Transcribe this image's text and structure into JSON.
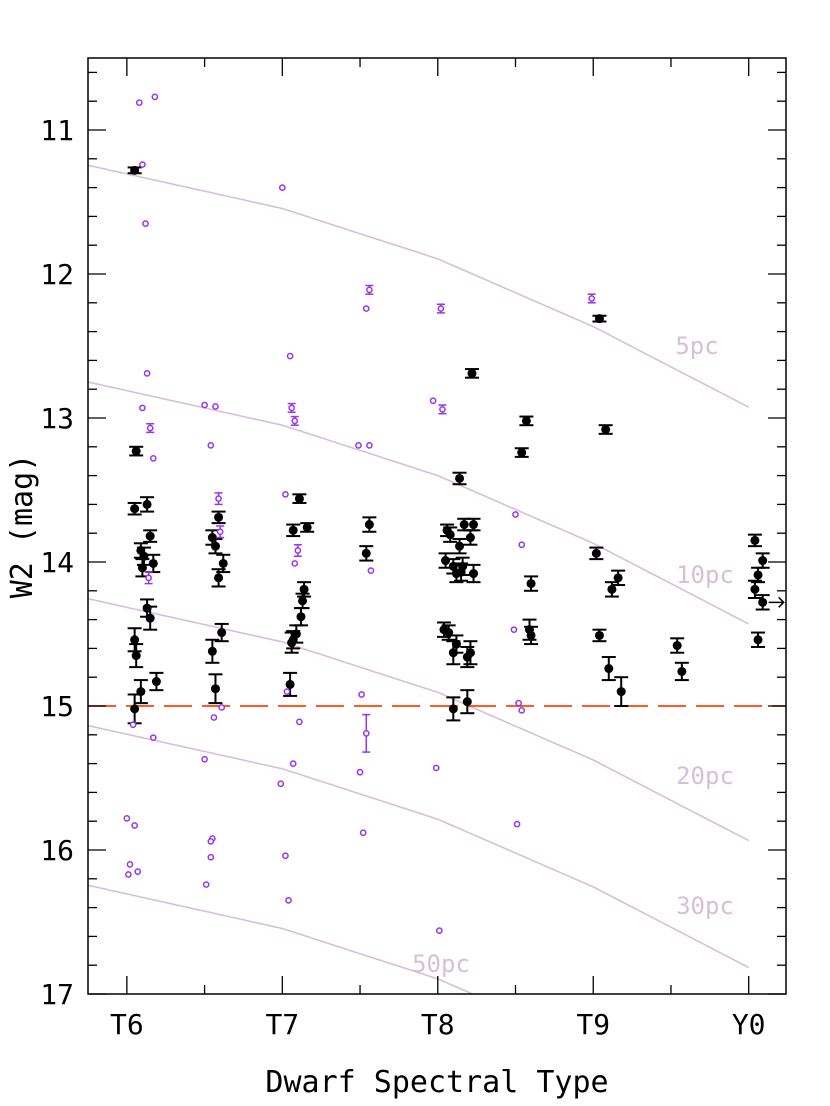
{
  "chart_data": {
    "type": "scatter",
    "xlabel": "Dwarf Spectral Type",
    "ylabel": "W2 (mag)",
    "x_ticks": [
      {
        "value": 6,
        "label": "T6"
      },
      {
        "value": 7,
        "label": "T7"
      },
      {
        "value": 8,
        "label": "T8"
      },
      {
        "value": 9,
        "label": "T9"
      },
      {
        "value": 10,
        "label": "Y0"
      }
    ],
    "y_ticks": [
      11,
      12,
      13,
      14,
      15,
      16,
      17
    ],
    "xlim": [
      5.75,
      10.24
    ],
    "ylim": [
      10.5,
      17
    ],
    "y_inverted": true,
    "grid": false,
    "colors": {
      "measured": "#000000",
      "other": "#9933ee",
      "distance_curves": "#d8bfd8",
      "limit_line": "#ff4500"
    },
    "horizontal_line": {
      "y": 15,
      "style": "dashed"
    },
    "distance_curves": {
      "spectral_types": [
        5.75,
        7,
        8,
        9,
        10
      ],
      "w2_at_10pc": [
        12.75,
        13.05,
        13.4,
        13.87,
        14.43
      ],
      "curves": [
        {
          "label": "5pc",
          "offset": -1.505
        },
        {
          "label": "10pc",
          "offset": 0
        },
        {
          "label": "20pc",
          "offset": 1.505
        },
        {
          "label": "30pc",
          "offset": 2.386
        },
        {
          "label": "50pc",
          "offset": 3.495
        }
      ]
    },
    "series": [
      {
        "marker": "filled-circle",
        "points": [
          [
            6.05,
            11.28,
            0.02
          ],
          [
            6.06,
            13.23,
            0.03
          ],
          [
            6.05,
            13.63,
            0.04
          ],
          [
            6.13,
            13.6,
            0.05
          ],
          [
            6.15,
            13.82,
            0.04
          ],
          [
            6.09,
            13.92,
            0.05
          ],
          [
            6.11,
            13.96,
            0.06
          ],
          [
            6.1,
            14.04,
            0.06
          ],
          [
            6.17,
            14.01,
            0.06
          ],
          [
            6.13,
            14.32,
            0.06
          ],
          [
            6.15,
            14.39,
            0.08
          ],
          [
            6.05,
            14.54,
            0.08
          ],
          [
            6.06,
            14.65,
            0.08
          ],
          [
            6.19,
            14.83,
            0.06
          ],
          [
            6.09,
            14.9,
            0.08
          ],
          [
            6.05,
            15.02,
            0.1
          ],
          [
            6.55,
            13.83,
            0.05
          ],
          [
            6.57,
            13.89,
            0.05
          ],
          [
            6.59,
            13.69,
            0.04
          ],
          [
            6.62,
            14.01,
            0.06
          ],
          [
            6.59,
            14.11,
            0.06
          ],
          [
            6.61,
            14.49,
            0.06
          ],
          [
            6.55,
            14.62,
            0.08
          ],
          [
            6.57,
            14.88,
            0.1
          ],
          [
            7.11,
            13.56,
            0.03
          ],
          [
            7.07,
            13.78,
            0.04
          ],
          [
            7.16,
            13.76,
            0.03
          ],
          [
            7.14,
            14.19,
            0.05
          ],
          [
            7.13,
            14.27,
            0.05
          ],
          [
            7.12,
            14.38,
            0.06
          ],
          [
            7.09,
            14.5,
            0.06
          ],
          [
            7.07,
            14.54,
            0.06
          ],
          [
            7.06,
            14.56,
            0.07
          ],
          [
            7.05,
            14.85,
            0.08
          ],
          [
            7.56,
            13.74,
            0.05
          ],
          [
            7.54,
            13.94,
            0.05
          ],
          [
            8.22,
            12.69,
            0.03
          ],
          [
            8.14,
            13.42,
            0.04
          ],
          [
            8.06,
            13.78,
            0.04
          ],
          [
            8.08,
            13.81,
            0.05
          ],
          [
            8.17,
            13.74,
            0.04
          ],
          [
            8.23,
            13.74,
            0.04
          ],
          [
            8.21,
            13.83,
            0.05
          ],
          [
            8.14,
            13.89,
            0.05
          ],
          [
            8.05,
            13.99,
            0.05
          ],
          [
            8.1,
            14.03,
            0.05
          ],
          [
            8.16,
            14.03,
            0.06
          ],
          [
            8.12,
            14.08,
            0.06
          ],
          [
            8.15,
            14.07,
            0.06
          ],
          [
            8.23,
            14.08,
            0.06
          ],
          [
            8.04,
            14.47,
            0.05
          ],
          [
            8.07,
            14.49,
            0.05
          ],
          [
            8.12,
            14.57,
            0.06
          ],
          [
            8.1,
            14.63,
            0.08
          ],
          [
            8.19,
            14.66,
            0.07
          ],
          [
            8.21,
            14.63,
            0.08
          ],
          [
            8.1,
            15.02,
            0.08
          ],
          [
            8.19,
            14.97,
            0.08
          ],
          [
            8.57,
            13.02,
            0.03
          ],
          [
            8.54,
            13.24,
            0.03
          ],
          [
            8.6,
            14.15,
            0.05
          ],
          [
            8.59,
            14.47,
            0.07
          ],
          [
            8.6,
            14.51,
            0.06
          ],
          [
            9.04,
            12.31,
            0.02
          ],
          [
            9.08,
            13.08,
            0.03
          ],
          [
            9.02,
            13.94,
            0.04
          ],
          [
            9.16,
            14.11,
            0.05
          ],
          [
            9.12,
            14.19,
            0.05
          ],
          [
            9.04,
            14.51,
            0.04
          ],
          [
            9.1,
            14.74,
            0.08
          ],
          [
            9.18,
            14.9,
            0.1
          ],
          [
            9.54,
            14.58,
            0.05
          ],
          [
            9.57,
            14.76,
            0.06
          ],
          [
            10.04,
            13.85,
            0.04
          ],
          [
            10.09,
            13.99,
            0.05
          ],
          [
            10.06,
            14.09,
            0.05
          ],
          [
            10.04,
            14.19,
            0.06
          ],
          [
            10.09,
            14.28,
            0.05
          ],
          [
            10.06,
            14.54,
            0.05
          ]
        ],
        "arrow_point": [
          10.09,
          14.28
        ]
      },
      {
        "marker": "open-circle",
        "points": [
          [
            6.08,
            10.81,
            0
          ],
          [
            6.18,
            10.77,
            0
          ],
          [
            6.1,
            11.24,
            0
          ],
          [
            6.12,
            11.65,
            0
          ],
          [
            6.13,
            12.69,
            0
          ],
          [
            6.1,
            12.93,
            0
          ],
          [
            6.17,
            13.28,
            0
          ],
          [
            6.15,
            13.07,
            0.03
          ],
          [
            6.14,
            14.11,
            0.04
          ],
          [
            6.17,
            15.22,
            0
          ],
          [
            6.04,
            15.13,
            0
          ],
          [
            6.0,
            15.78,
            0
          ],
          [
            6.05,
            15.83,
            0
          ],
          [
            6.02,
            16.1,
            0
          ],
          [
            6.07,
            16.15,
            0
          ],
          [
            6.01,
            16.17,
            0
          ],
          [
            6.5,
            12.91,
            0
          ],
          [
            6.57,
            12.92,
            0
          ],
          [
            6.54,
            13.19,
            0
          ],
          [
            6.59,
            13.56,
            0.04
          ],
          [
            6.6,
            13.79,
            0.04
          ],
          [
            6.61,
            15.01,
            0
          ],
          [
            6.56,
            15.08,
            0
          ],
          [
            6.5,
            15.37,
            0
          ],
          [
            6.55,
            15.92,
            0
          ],
          [
            6.54,
            15.94,
            0
          ],
          [
            6.54,
            16.05,
            0
          ],
          [
            6.51,
            16.24,
            0
          ],
          [
            7.0,
            11.4,
            0
          ],
          [
            7.05,
            12.57,
            0
          ],
          [
            7.06,
            12.93,
            0.03
          ],
          [
            7.08,
            13.02,
            0.03
          ],
          [
            7.02,
            13.53,
            0
          ],
          [
            7.1,
            13.92,
            0.04
          ],
          [
            7.08,
            14.01,
            0
          ],
          [
            7.03,
            14.9,
            0
          ],
          [
            7.11,
            15.11,
            0
          ],
          [
            7.07,
            15.4,
            0
          ],
          [
            6.99,
            15.54,
            0
          ],
          [
            7.02,
            16.04,
            0
          ],
          [
            7.04,
            16.35,
            0
          ],
          [
            7.56,
            12.11,
            0.03
          ],
          [
            7.54,
            12.24,
            0
          ],
          [
            7.49,
            13.19,
            0
          ],
          [
            7.56,
            13.19,
            0
          ],
          [
            7.57,
            14.06,
            0
          ],
          [
            7.51,
            14.92,
            0
          ],
          [
            7.54,
            15.19,
            0.13
          ],
          [
            7.5,
            15.46,
            0
          ],
          [
            7.52,
            15.88,
            0
          ],
          [
            8.02,
            12.24,
            0.03
          ],
          [
            7.97,
            12.88,
            0
          ],
          [
            8.03,
            12.94,
            0.03
          ],
          [
            7.99,
            15.43,
            0
          ],
          [
            8.01,
            16.56,
            0
          ],
          [
            8.5,
            13.67,
            0
          ],
          [
            8.54,
            13.88,
            0
          ],
          [
            8.49,
            14.47,
            0
          ],
          [
            8.52,
            14.98,
            0
          ],
          [
            8.54,
            15.03,
            0
          ],
          [
            8.51,
            15.82,
            0
          ],
          [
            8.99,
            12.17,
            0.03
          ]
        ]
      }
    ]
  }
}
